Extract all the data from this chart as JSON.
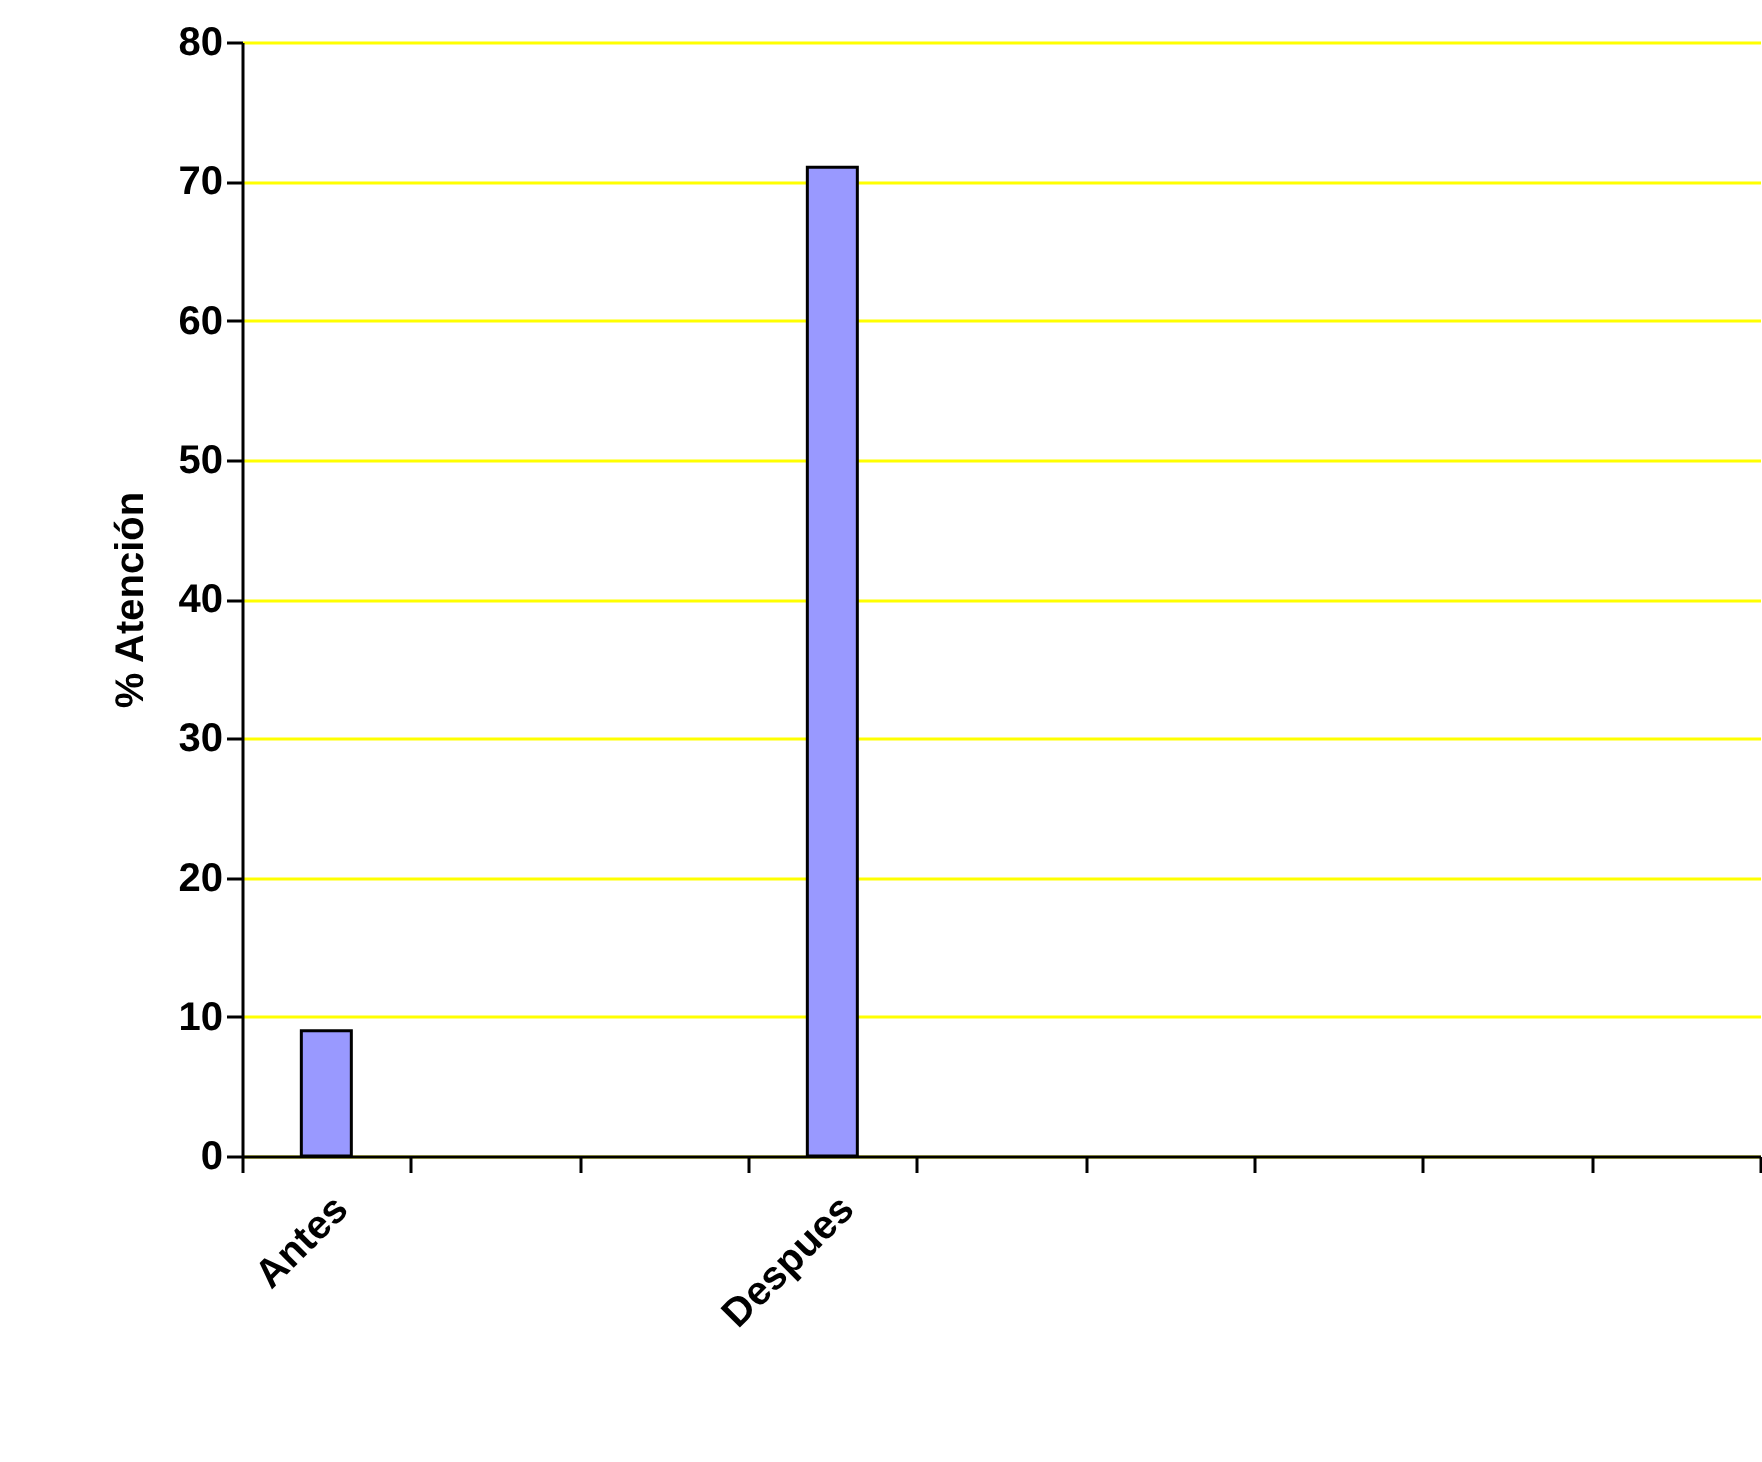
{
  "chart_data": {
    "type": "bar",
    "ylabel": "% Atención",
    "categories": [
      "Antes",
      null,
      null,
      "Despues",
      null,
      null,
      null,
      null,
      null
    ],
    "values": [
      9,
      null,
      null,
      71,
      null,
      null,
      null,
      null,
      null
    ],
    "color": "#9999ff",
    "ylim": [
      0,
      80
    ],
    "yticks": [
      0,
      10,
      20,
      30,
      40,
      50,
      60,
      70,
      80
    ],
    "grid": "y"
  }
}
